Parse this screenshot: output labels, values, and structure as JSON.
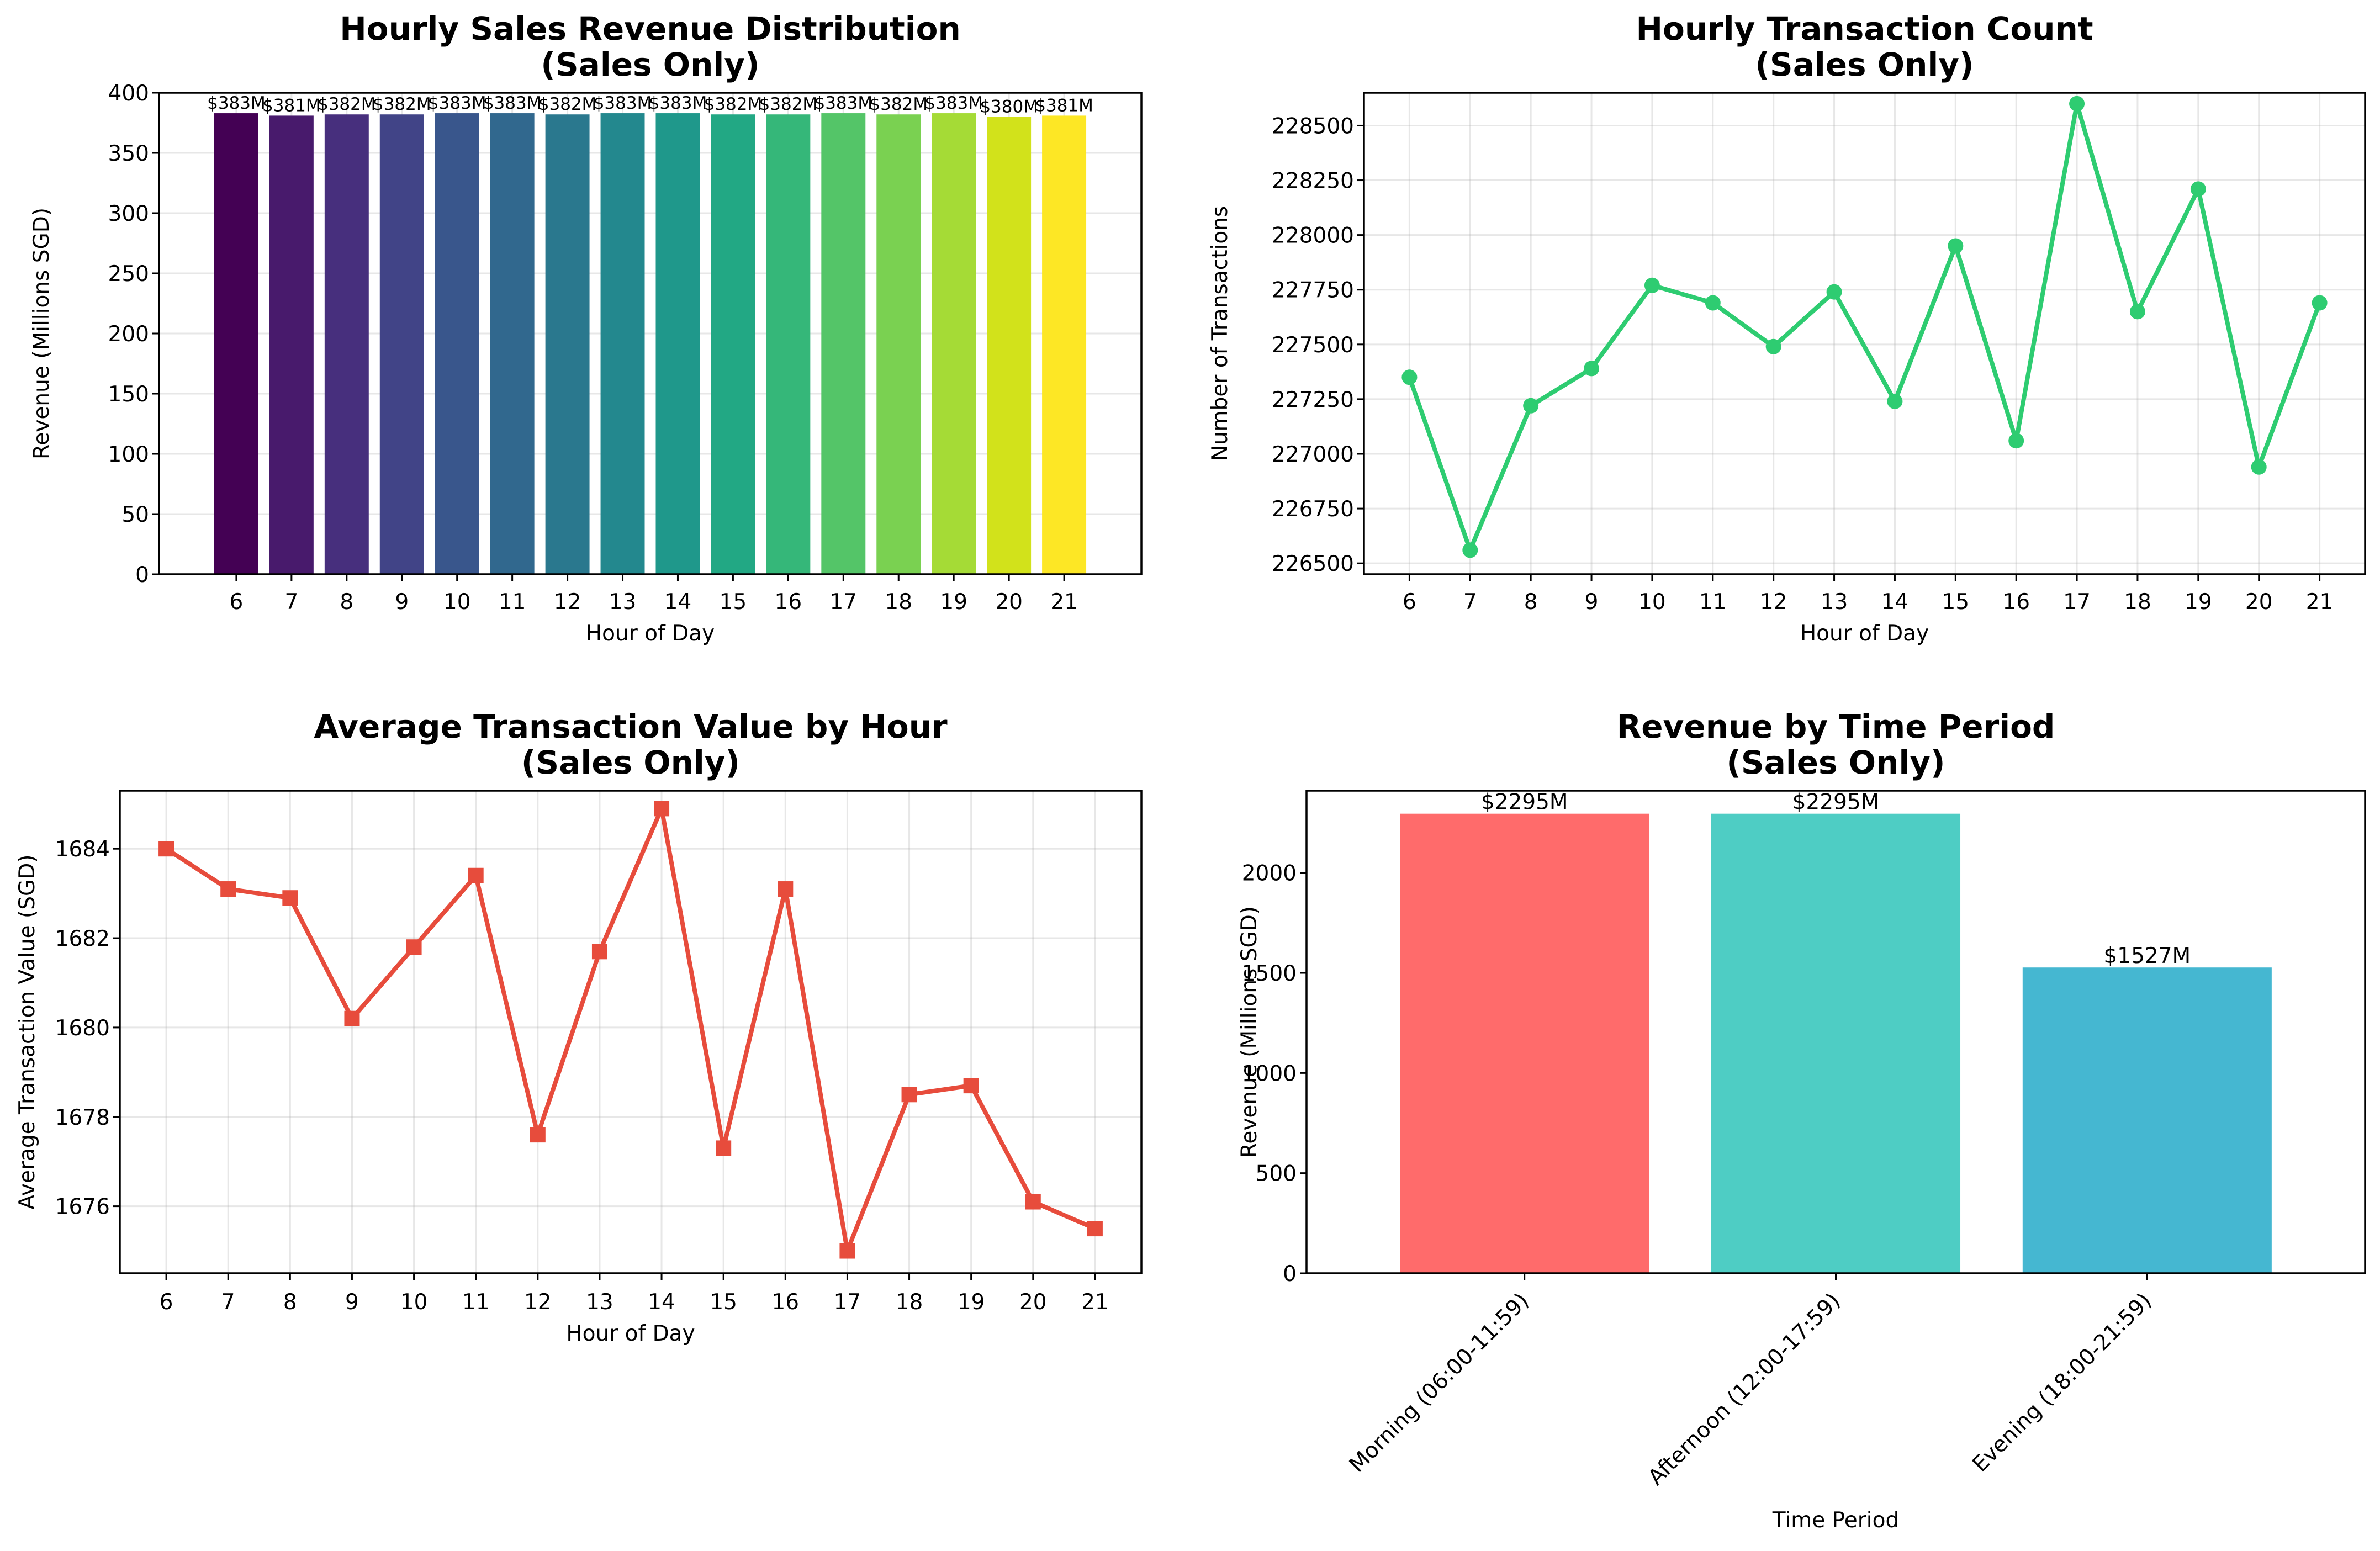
{
  "chart_data": [
    {
      "type": "bar",
      "title": [
        "Hourly Sales Revenue Distribution",
        "(Sales Only)"
      ],
      "xlabel": "Hour of Day",
      "ylabel": "Revenue (Millions SGD)",
      "categories": [
        "6",
        "7",
        "8",
        "9",
        "10",
        "11",
        "12",
        "13",
        "14",
        "15",
        "16",
        "17",
        "18",
        "19",
        "20",
        "21"
      ],
      "values": [
        383,
        381,
        382,
        382,
        383,
        383,
        382,
        383,
        383,
        382,
        382,
        383,
        382,
        383,
        380,
        381
      ],
      "data_labels": [
        "$383M",
        "$381M",
        "$382M",
        "$382M",
        "$383M",
        "$383M",
        "$382M",
        "$383M",
        "$383M",
        "$382M",
        "$382M",
        "$383M",
        "$382M",
        "$383M",
        "$380M",
        "$381M"
      ],
      "ylim": [
        0,
        400
      ],
      "yticks": [
        "0",
        "50",
        "100",
        "150",
        "200",
        "250",
        "300",
        "350",
        "400"
      ],
      "colormap": "viridis",
      "colors": [
        "#440154",
        "#481a6c",
        "#472f7d",
        "#414487",
        "#39568c",
        "#31688e",
        "#2a788e",
        "#23888e",
        "#1f988b",
        "#22a884",
        "#35b779",
        "#54c568",
        "#7ad151",
        "#a5db36",
        "#d2e21b",
        "#fde725"
      ],
      "grid": true
    },
    {
      "type": "line",
      "title": [
        "Hourly Transaction Count",
        "(Sales Only)"
      ],
      "xlabel": "Hour of Day",
      "ylabel": "Number of Transactions",
      "x": [
        "6",
        "7",
        "8",
        "9",
        "10",
        "11",
        "12",
        "13",
        "14",
        "15",
        "16",
        "17",
        "18",
        "19",
        "20",
        "21"
      ],
      "values": [
        227350,
        226560,
        227220,
        227390,
        227770,
        227690,
        227490,
        227740,
        227240,
        227950,
        227060,
        228600,
        227650,
        228210,
        226940,
        227690
      ],
      "ylim": [
        226450,
        228650
      ],
      "yticks": [
        "226500",
        "226750",
        "227000",
        "227250",
        "227500",
        "227750",
        "228000",
        "228250",
        "228500"
      ],
      "color": "#2ecc71",
      "marker": "circle",
      "grid": true
    },
    {
      "type": "line",
      "title": [
        "Average Transaction Value by Hour",
        "(Sales Only)"
      ],
      "xlabel": "Hour of Day",
      "ylabel": "Average Transaction Value (SGD)",
      "x": [
        "6",
        "7",
        "8",
        "9",
        "10",
        "11",
        "12",
        "13",
        "14",
        "15",
        "16",
        "17",
        "18",
        "19",
        "20",
        "21"
      ],
      "values": [
        1684.0,
        1683.1,
        1682.9,
        1680.2,
        1681.8,
        1683.4,
        1677.6,
        1681.7,
        1684.9,
        1677.3,
        1683.1,
        1675.0,
        1678.5,
        1678.7,
        1676.1,
        1675.5
      ],
      "ylim": [
        1674.5,
        1685.3
      ],
      "yticks": [
        "1676",
        "1678",
        "1680",
        "1682",
        "1684"
      ],
      "color": "#e74c3c",
      "marker": "square",
      "grid": true
    },
    {
      "type": "bar",
      "title": [
        "Revenue by Time Period",
        "(Sales Only)"
      ],
      "xlabel": "Time Period",
      "ylabel": "Revenue (Millions SGD)",
      "categories": [
        "Morning (06:00-11:59)",
        "Afternoon (12:00-17:59)",
        "Evening (18:00-21:59)"
      ],
      "values": [
        2295,
        2295,
        1527
      ],
      "data_labels": [
        "$2295M",
        "$2295M",
        "$1527M"
      ],
      "ylim": [
        0,
        2410
      ],
      "yticks": [
        "0",
        "500",
        "1000",
        "1500",
        "2000"
      ],
      "colors": [
        "#ff6b6b",
        "#4ecdc4",
        "#45b7d1"
      ],
      "grid": false
    }
  ]
}
